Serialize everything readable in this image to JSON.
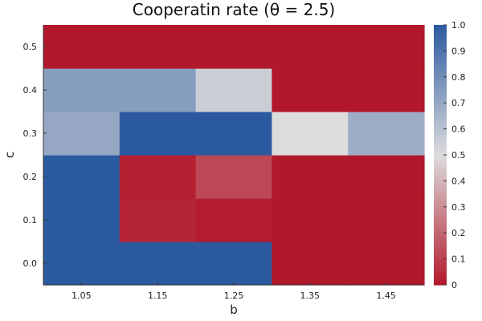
{
  "chart_data": {
    "type": "heatmap",
    "title": "Cooperatin rate (θ = 2.5)",
    "xlabel": "b",
    "ylabel": "c",
    "x": [
      1.05,
      1.15,
      1.25,
      1.35,
      1.45
    ],
    "x_tick_labels": [
      "1.05",
      "1.15",
      "1.25",
      "1.35",
      "1.45"
    ],
    "y": [
      0.0,
      0.1,
      0.2,
      0.3,
      0.4,
      0.5
    ],
    "y_tick_labels": [
      "0.0",
      "0.1",
      "0.2",
      "0.3",
      "0.4",
      "0.5"
    ],
    "z": [
      [
        1.0,
        1.0,
        1.0,
        0.0,
        0.0
      ],
      [
        1.0,
        0.03,
        0.01,
        0.0,
        0.0
      ],
      [
        1.0,
        0.02,
        0.12,
        0.0,
        0.0
      ],
      [
        0.7,
        1.0,
        1.0,
        0.5,
        0.68
      ],
      [
        0.74,
        0.74,
        0.55,
        0.0,
        0.0
      ],
      [
        0.0,
        0.0,
        0.0,
        0.0,
        0.0
      ]
    ],
    "zlim": [
      0,
      1
    ],
    "colorbar_ticks": [
      0,
      0.1,
      0.2,
      0.3,
      0.4,
      0.5,
      0.6,
      0.7,
      0.8,
      0.9,
      1.0
    ],
    "colorbar_tick_labels": [
      "0",
      "0.1",
      "0.2",
      "0.3",
      "0.4",
      "0.5",
      "0.6",
      "0.7",
      "0.8",
      "0.9",
      "1.0"
    ],
    "colormap": {
      "low": "#b2182b",
      "mid": "#dcdcdc",
      "high": "#2c5aa0"
    },
    "grid": false,
    "legend": "colorbar-right"
  }
}
